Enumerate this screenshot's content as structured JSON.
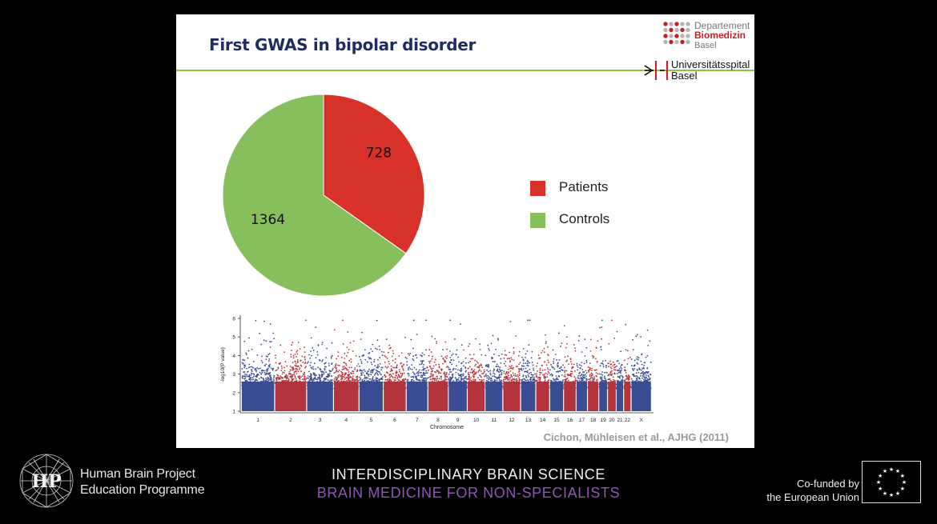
{
  "slide": {
    "title": "First GWAS in bipolar disorder",
    "citation": "Cichon, Mühleisen et al., AJHG (2011)"
  },
  "logos": {
    "department": {
      "line1": "Departement",
      "line2": "Biomedizin",
      "line3": "Basel"
    },
    "hospital": {
      "line1": "Universitätsspital",
      "line2": "Basel"
    }
  },
  "chart_data": [
    {
      "type": "pie",
      "title": "",
      "slices": [
        {
          "label": "Patients",
          "value": 728,
          "color": "#d7312a"
        },
        {
          "label": "Controls",
          "value": 1364,
          "color": "#86bf5b"
        }
      ],
      "legend_position": "right"
    },
    {
      "type": "scatter",
      "title": "",
      "xlabel": "Chromosome",
      "ylabel": "-log10(P value)",
      "ylim": [
        1,
        6
      ],
      "y_ticks": [
        "1",
        "2",
        "3",
        "4",
        "5",
        "6"
      ],
      "x_ticks": [
        "1",
        "2",
        "3",
        "4",
        "5",
        "6",
        "7",
        "8",
        "9",
        "10",
        "11",
        "12",
        "13",
        "14",
        "15",
        "16",
        "17",
        "18",
        "19",
        "20",
        "21",
        "22",
        "X"
      ],
      "colors": [
        "#3a4c94",
        "#b3343d"
      ]
    }
  ],
  "footer": {
    "hbp_line1": "Human Brain Project",
    "hbp_line2": "Education Programme",
    "title1": "INTERDISCIPLINARY BRAIN SCIENCE",
    "title2": "BRAIN MEDICINE FOR NON-SPECIALISTS",
    "eu_line1": "Co-funded by",
    "eu_line2": "the European Union"
  }
}
